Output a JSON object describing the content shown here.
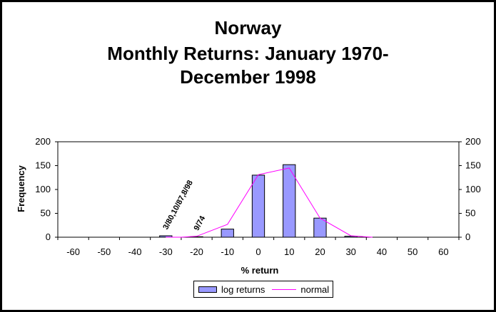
{
  "chart_data": {
    "type": "bar",
    "title_lines": [
      "Norway",
      "Monthly Returns: January 1970-",
      "December 1998"
    ],
    "xlabel": "% return",
    "ylabel": "Frequency",
    "categories": [
      "-60",
      "-50",
      "-40",
      "-30",
      "-20",
      "-10",
      "0",
      "10",
      "20",
      "30",
      "40",
      "50",
      "60"
    ],
    "x_ticks": [
      -60,
      -50,
      -40,
      -30,
      -20,
      -10,
      0,
      10,
      20,
      30,
      40,
      50,
      60
    ],
    "xlim": [
      -65,
      65
    ],
    "ylim": [
      0,
      200
    ],
    "y_ticks": [
      0,
      50,
      100,
      150,
      200
    ],
    "y2_ticks": [
      0,
      50,
      100,
      150,
      200
    ],
    "grid": false,
    "legend_position": "bottom",
    "colors": {
      "bars": "#9999ff",
      "normal": "#ff00ff"
    },
    "series": [
      {
        "name": "log returns",
        "type": "bar",
        "x": [
          -60,
          -50,
          -40,
          -30,
          -20,
          -10,
          0,
          10,
          20,
          30,
          40,
          50,
          60
        ],
        "values": [
          0,
          0,
          0,
          3,
          1,
          17,
          130,
          152,
          40,
          2,
          0,
          0,
          0
        ]
      },
      {
        "name": "normal",
        "type": "line",
        "x": [
          -30,
          -25,
          -20,
          -10,
          0,
          10,
          20,
          30,
          37
        ],
        "values": [
          0,
          0,
          2,
          27,
          131,
          145,
          40,
          3,
          0
        ]
      }
    ],
    "annotations": [
      {
        "text": "3/80,10/87,8/98",
        "x": -30,
        "y": 3
      },
      {
        "text": "9/74",
        "x": -20,
        "y": 1
      }
    ]
  }
}
